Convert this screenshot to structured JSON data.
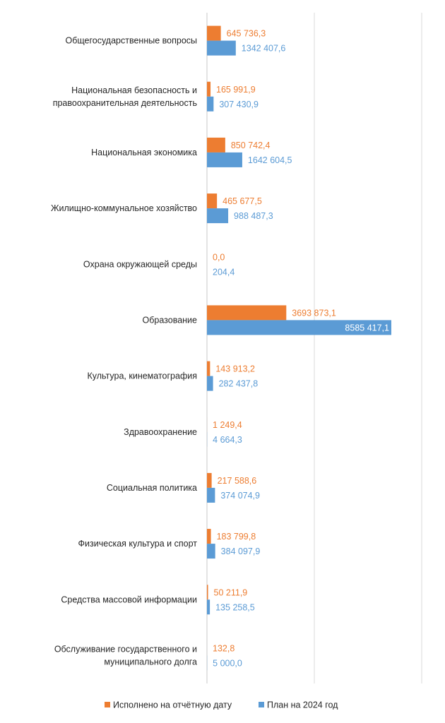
{
  "chart_data": {
    "type": "bar",
    "orientation": "horizontal",
    "title": "",
    "xlabel": "",
    "ylabel": "",
    "xlim": [
      0,
      10000000
    ],
    "grid": true,
    "legend_position": "bottom",
    "categories": [
      [
        "Общегосударственные вопросы"
      ],
      [
        "Национальная безопасность и",
        "правоохранительная деятельность"
      ],
      [
        "Национальная экономика"
      ],
      [
        "Жилищно-коммунальное хозяйство"
      ],
      [
        "Охрана окружающей среды"
      ],
      [
        "Образование"
      ],
      [
        "Культура, кинематография"
      ],
      [
        "Здравоохранение"
      ],
      [
        "Социальная политика"
      ],
      [
        "Физическая культура и спорт"
      ],
      [
        "Средства массовой информации"
      ],
      [
        "Обслуживание государственного и",
        "муниципального долга"
      ]
    ],
    "series": [
      {
        "name": "Исполнено на отчётную дату",
        "color": "#ED7D31",
        "values": [
          645736.3,
          165991.9,
          850742.4,
          465677.5,
          0.0,
          3693873.1,
          143913.2,
          1249.4,
          217588.6,
          183799.8,
          50211.9,
          132.8
        ],
        "labels": [
          "645 736,3",
          "165 991,9",
          "850 742,4",
          "465 677,5",
          "0,0",
          "3693 873,1",
          "143 913,2",
          "1 249,4",
          "217 588,6",
          "183 799,8",
          "50 211,9",
          "132,8"
        ]
      },
      {
        "name": "План на 2024 год",
        "color": "#5B9BD5",
        "values": [
          1342407.6,
          307430.9,
          1642604.5,
          988487.3,
          204.4,
          8585417.1,
          282437.8,
          4664.3,
          374074.9,
          384097.9,
          135258.5,
          5000.0
        ],
        "labels": [
          "1342 407,6",
          "307 430,9",
          "1642 604,5",
          "988 487,3",
          "204,4",
          "8585 417,1",
          "282 437,8",
          "4 664,3",
          "374 074,9",
          "384 097,9",
          "135 258,5",
          "5 000,0"
        ]
      }
    ]
  }
}
